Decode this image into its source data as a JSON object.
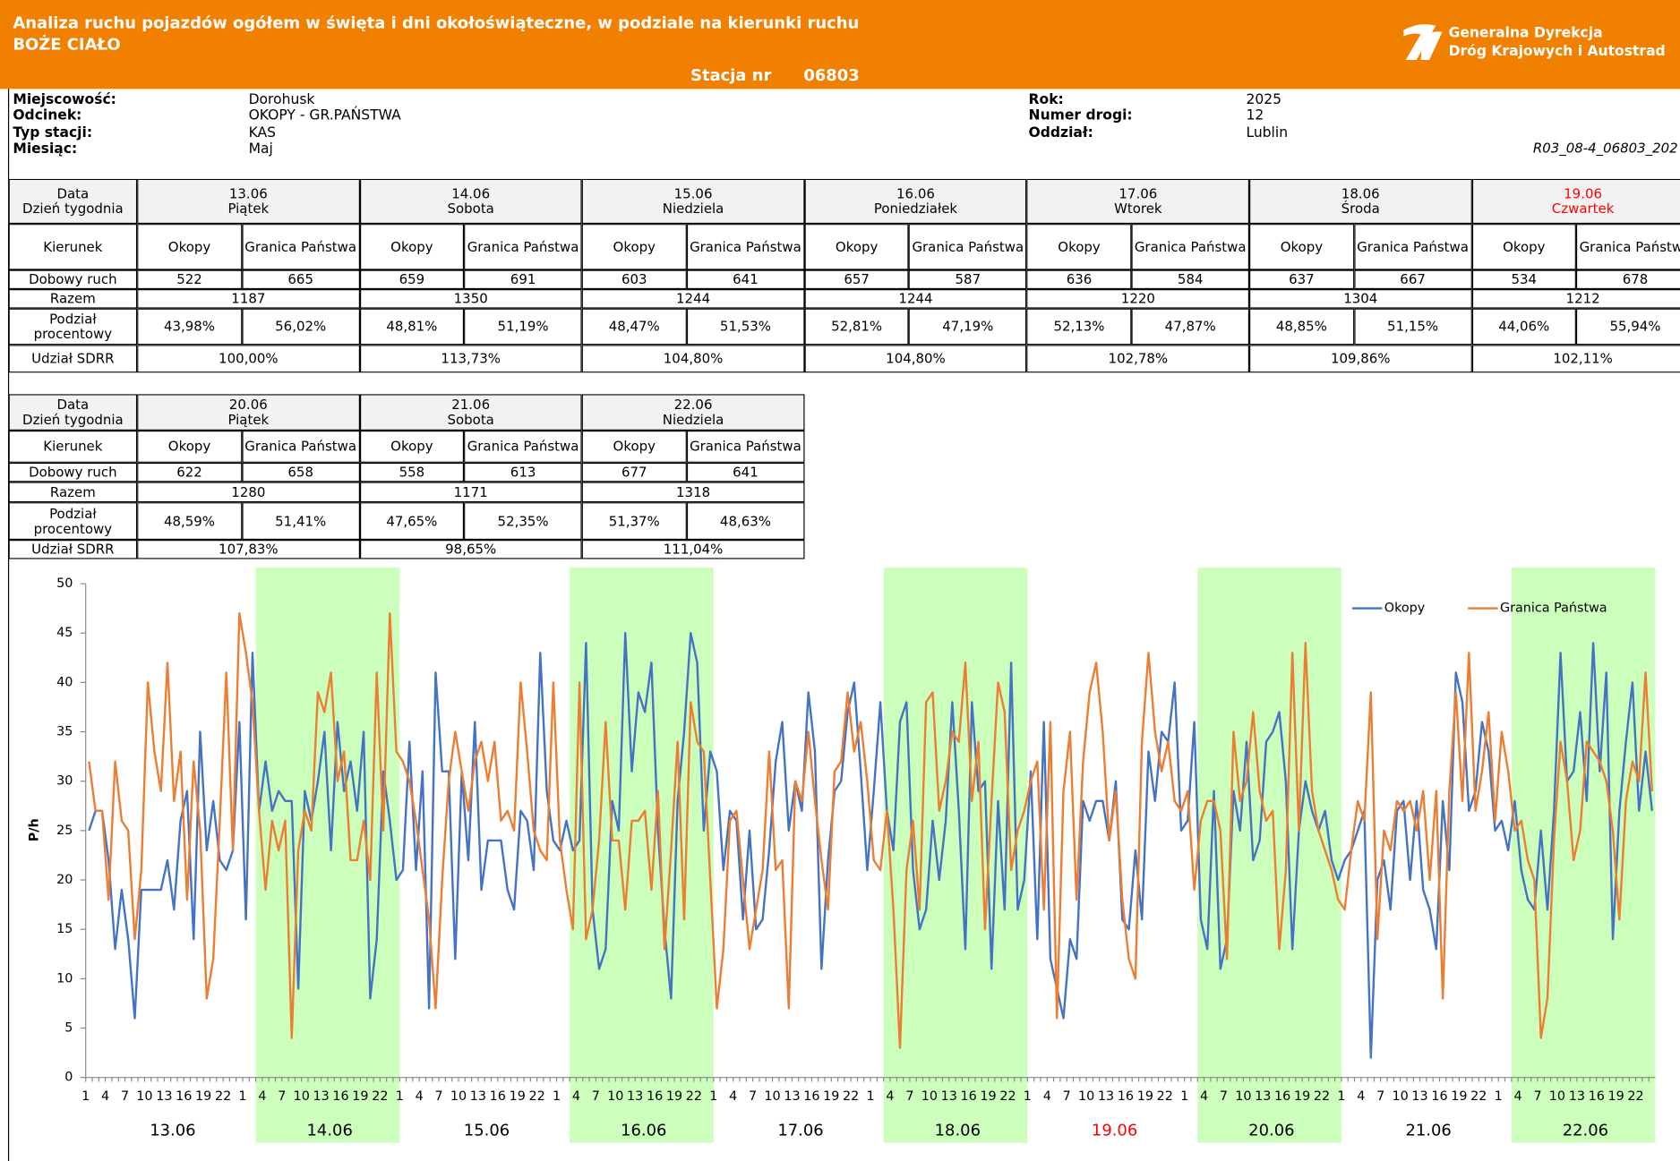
{
  "header": {
    "title": "Analiza ruchu pojazdów ogółem w święta i dni okołoświąteczne, w podziale na kierunki ruchu",
    "subtitle": "BOŻE CIAŁO",
    "logo_lines": [
      "Generalna Dyrekcja",
      "Dróg Krajowych i Autostrad"
    ],
    "station_label": "Stacja nr",
    "station_number": "06803"
  },
  "info": {
    "left": [
      {
        "label": "Miejscowość:",
        "value": "Dorohusk"
      },
      {
        "label": "Odcinek:",
        "value": "OKOPY - GR.PAŃSTWA"
      },
      {
        "label": "Typ stacji:",
        "value": "KAS"
      },
      {
        "label": "Miesiąc:",
        "value": "Maj"
      }
    ],
    "right": [
      {
        "label": "Rok:",
        "value": "2025"
      },
      {
        "label": "Numer drogi:",
        "value": "12"
      },
      {
        "label": "Oddział:",
        "value": "Lublin"
      }
    ],
    "code": "R03_08-4_06803_202"
  },
  "tables": [
    {
      "row_labels": {
        "date": "Data",
        "weekday": "Dzień tygodnia",
        "direction": "Kierunek",
        "daily": "Dobowy ruch",
        "total": "Razem",
        "share": "Podział procentowy",
        "sdrr": "Udział SDRR"
      },
      "days": [
        {
          "date": "13.06",
          "weekday": "Piątek",
          "color": "#000000",
          "directions": [
            "Okopy",
            "Granica Państwa"
          ],
          "daily": [
            522,
            665
          ],
          "total": 1187,
          "share": [
            "43,98%",
            "56,02%"
          ],
          "sdrr": "100,00%"
        },
        {
          "date": "14.06",
          "weekday": "Sobota",
          "color": "#000000",
          "directions": [
            "Okopy",
            "Granica Państwa"
          ],
          "daily": [
            659,
            691
          ],
          "total": 1350,
          "share": [
            "48,81%",
            "51,19%"
          ],
          "sdrr": "113,73%"
        },
        {
          "date": "15.06",
          "weekday": "Niedziela",
          "color": "#000000",
          "directions": [
            "Okopy",
            "Granica Państwa"
          ],
          "daily": [
            603,
            641
          ],
          "total": 1244,
          "share": [
            "48,47%",
            "51,53%"
          ],
          "sdrr": "104,80%"
        },
        {
          "date": "16.06",
          "weekday": "Poniedziałek",
          "color": "#000000",
          "directions": [
            "Okopy",
            "Granica Państwa"
          ],
          "daily": [
            657,
            587
          ],
          "total": 1244,
          "share": [
            "52,81%",
            "47,19%"
          ],
          "sdrr": "104,80%"
        },
        {
          "date": "17.06",
          "weekday": "Wtorek",
          "color": "#000000",
          "directions": [
            "Okopy",
            "Granica Państwa"
          ],
          "daily": [
            636,
            584
          ],
          "total": 1220,
          "share": [
            "52,13%",
            "47,87%"
          ],
          "sdrr": "102,78%"
        },
        {
          "date": "18.06",
          "weekday": "Środa",
          "color": "#000000",
          "directions": [
            "Okopy",
            "Granica Państwa"
          ],
          "daily": [
            637,
            667
          ],
          "total": 1304,
          "share": [
            "48,85%",
            "51,15%"
          ],
          "sdrr": "109,86%"
        },
        {
          "date": "19.06",
          "weekday": "Czwartek",
          "color": "#ff0000",
          "directions": [
            "Okopy",
            "Granica Państwa"
          ],
          "daily": [
            534,
            678
          ],
          "total": 1212,
          "share": [
            "44,06%",
            "55,94%"
          ],
          "sdrr": "102,11%"
        }
      ]
    },
    {
      "row_labels": {
        "date": "Data",
        "weekday": "Dzień tygodnia",
        "direction": "Kierunek",
        "daily": "Dobowy ruch",
        "total": "Razem",
        "share": "Podział procentowy",
        "sdrr": "Udział SDRR"
      },
      "days": [
        {
          "date": "20.06",
          "weekday": "Piątek",
          "color": "#000000",
          "directions": [
            "Okopy",
            "Granica Państwa"
          ],
          "daily": [
            622,
            658
          ],
          "total": 1280,
          "share": [
            "48,59%",
            "51,41%"
          ],
          "sdrr": "107,83%"
        },
        {
          "date": "21.06",
          "weekday": "Sobota",
          "color": "#000000",
          "directions": [
            "Okopy",
            "Granica Państwa"
          ],
          "daily": [
            558,
            613
          ],
          "total": 1171,
          "share": [
            "47,65%",
            "52,35%"
          ],
          "sdrr": "98,65%"
        },
        {
          "date": "22.06",
          "weekday": "Niedziela",
          "color": "#000000",
          "directions": [
            "Okopy",
            "Granica Państwa"
          ],
          "daily": [
            677,
            641
          ],
          "total": 1318,
          "share": [
            "51,37%",
            "48,63%"
          ],
          "sdrr": "111,04%"
        }
      ]
    }
  ],
  "chart_data": {
    "type": "line",
    "y_label": "P/h",
    "ylim": [
      0,
      50
    ],
    "yticks": [
      0,
      5,
      10,
      15,
      20,
      25,
      30,
      35,
      40,
      45,
      50
    ],
    "grid": false,
    "legend": "top-right",
    "highlight_color": "#ccffbb",
    "categories": [
      1,
      null,
      null,
      4,
      null,
      null,
      7,
      null,
      null,
      10,
      null,
      null,
      13,
      null,
      null,
      16,
      null,
      null,
      19,
      null,
      null,
      22,
      null,
      null,
      1,
      null,
      null,
      4,
      null,
      null,
      7,
      null,
      null,
      10,
      null,
      null,
      13,
      null,
      null,
      16,
      null,
      null,
      19,
      null,
      null,
      22,
      null,
      null,
      1,
      null,
      null,
      4,
      null,
      null,
      7,
      null,
      null,
      10,
      null,
      null,
      13,
      null,
      null,
      16,
      null,
      null,
      19,
      null,
      null,
      22,
      null,
      null,
      1,
      null,
      null,
      4,
      null,
      null,
      7,
      null,
      null,
      10,
      null,
      null,
      13,
      null,
      null,
      16,
      null,
      null,
      19,
      null,
      null,
      22,
      null,
      null,
      1,
      null,
      null,
      4,
      null,
      null,
      7,
      null,
      null,
      10,
      null,
      null,
      13,
      null,
      null,
      16,
      null,
      null,
      19,
      null,
      null,
      22,
      null,
      null,
      1,
      null,
      null,
      4,
      null,
      null,
      7,
      null,
      null,
      10,
      null,
      null,
      13,
      null,
      null,
      16,
      null,
      null,
      19,
      null,
      null,
      22,
      null,
      null,
      1,
      null,
      null,
      4,
      null,
      null,
      7,
      null,
      null,
      10,
      null,
      null,
      13,
      null,
      null,
      16,
      null,
      null,
      19,
      null,
      null,
      22,
      null,
      null,
      1,
      null,
      null,
      4,
      null,
      null,
      7,
      null,
      null,
      10,
      null,
      null,
      13,
      null,
      null,
      16,
      null,
      null,
      19,
      null,
      null,
      22,
      null,
      null,
      1,
      null,
      null,
      4,
      null,
      null,
      7,
      null,
      null,
      10,
      null,
      null,
      13,
      null,
      null,
      16,
      null,
      null,
      19,
      null,
      null,
      22,
      null,
      null,
      1,
      null,
      null,
      4,
      null,
      null,
      7,
      null,
      null,
      10,
      null,
      null,
      13,
      null,
      null,
      16,
      null,
      null,
      19,
      null,
      null,
      22,
      null,
      null
    ],
    "day_groups": [
      {
        "label": "13.06",
        "highlight": false,
        "color": "#000000"
      },
      {
        "label": "14.06",
        "highlight": true,
        "color": "#000000"
      },
      {
        "label": "15.06",
        "highlight": false,
        "color": "#000000"
      },
      {
        "label": "16.06",
        "highlight": true,
        "color": "#000000"
      },
      {
        "label": "17.06",
        "highlight": false,
        "color": "#000000"
      },
      {
        "label": "18.06",
        "highlight": true,
        "color": "#000000"
      },
      {
        "label": "19.06",
        "highlight": false,
        "color": "#ff0000"
      },
      {
        "label": "20.06",
        "highlight": true,
        "color": "#000000"
      },
      {
        "label": "21.06",
        "highlight": false,
        "color": "#000000"
      },
      {
        "label": "22.06",
        "highlight": true,
        "color": "#000000"
      }
    ],
    "series": [
      {
        "name": "Okopy",
        "color": "#4472c4",
        "values": [
          25,
          27,
          27,
          22,
          13,
          19,
          14,
          6,
          19,
          19,
          19,
          19,
          22,
          17,
          26,
          29,
          14,
          35,
          23,
          28,
          22,
          21,
          23,
          36,
          16,
          43,
          27,
          32,
          27,
          29,
          28,
          28,
          9,
          29,
          26,
          30,
          35,
          23,
          36,
          29,
          32,
          27,
          35,
          8,
          14,
          31,
          26,
          20,
          21,
          34,
          21,
          31,
          7,
          41,
          31,
          31,
          12,
          31,
          22,
          36,
          19,
          24,
          24,
          24,
          19,
          17,
          27,
          26,
          21,
          43,
          29,
          24,
          23,
          26,
          23,
          24,
          44,
          17,
          11,
          13,
          28,
          25,
          45,
          31,
          39,
          37,
          42,
          25,
          15,
          8,
          28,
          35,
          45,
          42,
          25,
          33,
          31,
          21,
          27,
          26,
          16,
          25,
          15,
          16,
          23,
          32,
          36,
          25,
          30,
          27,
          39,
          33,
          11,
          22,
          29,
          30,
          37,
          40,
          31,
          21,
          29,
          38,
          27,
          23,
          36,
          38,
          21,
          15,
          17,
          26,
          20,
          26,
          38,
          27,
          13,
          38,
          29,
          30,
          11,
          28,
          17,
          42,
          17,
          20,
          31,
          14,
          36,
          12,
          9,
          6,
          14,
          12,
          28,
          26,
          28,
          28,
          24,
          30,
          16,
          15,
          23,
          16,
          33,
          28,
          35,
          34,
          40,
          25,
          26,
          36,
          16,
          13,
          29,
          11,
          14,
          29,
          25,
          34,
          22,
          24,
          34,
          35,
          37,
          30,
          13,
          25,
          30,
          27,
          25,
          27,
          22,
          20,
          22,
          23,
          25,
          27,
          2,
          20,
          22,
          17,
          27,
          28,
          20,
          28,
          19,
          17,
          13,
          28,
          21,
          41,
          38,
          27,
          29,
          36,
          33,
          25,
          26,
          23,
          28,
          21,
          18,
          17,
          25,
          17,
          27,
          43,
          30,
          31,
          37,
          28,
          44,
          31,
          41,
          14,
          27,
          34,
          40,
          27,
          33,
          27
        ]
      },
      {
        "name": "Granica Państwa",
        "color": "#ed7d31",
        "values": [
          32,
          27,
          27,
          18,
          32,
          26,
          25,
          14,
          21,
          40,
          33,
          29,
          42,
          28,
          33,
          18,
          32,
          25,
          8,
          12,
          26,
          41,
          23,
          47,
          43,
          38,
          27,
          19,
          26,
          23,
          26,
          4,
          23,
          27,
          25,
          39,
          37,
          41,
          30,
          33,
          22,
          22,
          26,
          20,
          41,
          25,
          47,
          33,
          32,
          30,
          26,
          21,
          16,
          7,
          20,
          30,
          35,
          31,
          27,
          32,
          34,
          30,
          34,
          26,
          27,
          25,
          40,
          33,
          25,
          23,
          22,
          40,
          24,
          19,
          15,
          40,
          14,
          17,
          24,
          36,
          24,
          24,
          17,
          26,
          26,
          27,
          19,
          29,
          13,
          23,
          34,
          16,
          38,
          34,
          33,
          20,
          7,
          13,
          26,
          27,
          20,
          13,
          17,
          21,
          33,
          21,
          22,
          7,
          30,
          28,
          35,
          28,
          22,
          17,
          31,
          32,
          39,
          33,
          36,
          30,
          22,
          21,
          27,
          17,
          3,
          21,
          26,
          17,
          38,
          39,
          27,
          30,
          35,
          34,
          42,
          28,
          34,
          15,
          28,
          40,
          37,
          21,
          25,
          27,
          30,
          32,
          17,
          36,
          6,
          29,
          35,
          18,
          32,
          39,
          42,
          35,
          24,
          29,
          18,
          12,
          10,
          34,
          43,
          35,
          31,
          34,
          28,
          27,
          29,
          19,
          26,
          28,
          28,
          25,
          12,
          35,
          28,
          30,
          37,
          29,
          26,
          27,
          13,
          21,
          43,
          25,
          44,
          29,
          25,
          23,
          21,
          18,
          17,
          23,
          28,
          26,
          39,
          14,
          25,
          23,
          28,
          27,
          28,
          25,
          29,
          20,
          29,
          8,
          29,
          39,
          28,
          43,
          27,
          31,
          37,
          26,
          35,
          31,
          25,
          26,
          22,
          20,
          4,
          8,
          24,
          34,
          30,
          22,
          25,
          34,
          33,
          32,
          30,
          25,
          16,
          28,
          32,
          30,
          41,
          29
        ]
      }
    ]
  }
}
